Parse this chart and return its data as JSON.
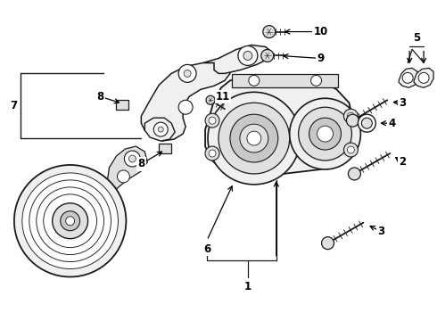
{
  "bg_color": "#ffffff",
  "fig_width": 4.9,
  "fig_height": 3.6,
  "dpi": 100,
  "line_color": "#1a1a1a",
  "light_fill": "#f0f0f0",
  "mid_fill": "#e0e0e0",
  "dark_fill": "#c8c8c8",
  "lw_main": 1.0,
  "lw_detail": 0.6
}
